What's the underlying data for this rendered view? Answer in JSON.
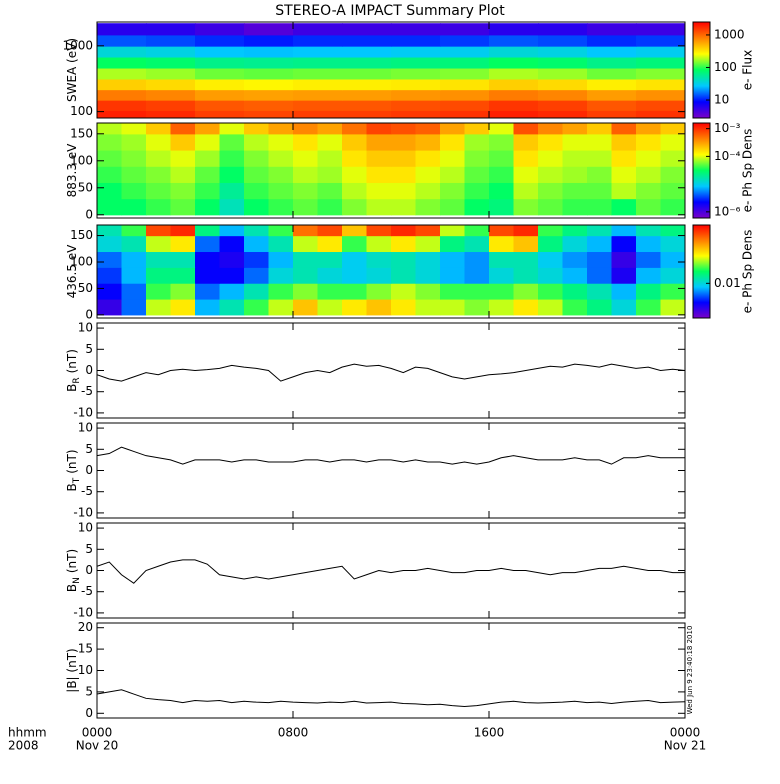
{
  "chart_data": {
    "title": "STEREO-A IMPACT Summary Plot",
    "xlim": [
      0,
      24
    ],
    "xticks": [
      {
        "value": 0,
        "label": "0000"
      },
      {
        "value": 8,
        "label": "0800"
      },
      {
        "value": 16,
        "label": "1600"
      },
      {
        "value": 24,
        "label": "0000"
      }
    ],
    "date_labels": [
      {
        "value": 0,
        "label": "Nov 20"
      },
      {
        "value": 24,
        "label": "Nov 21"
      }
    ],
    "xlabel_left": [
      "hhmm",
      "2008"
    ],
    "timestamp": "Wed Jun 9 23:40:18 2010",
    "colorscale": [
      "#7a00c8",
      "#0000ff",
      "#00c8ff",
      "#00ff60",
      "#ffff00",
      "#ff8000",
      "#ff0000"
    ],
    "x": [
      0,
      0.5,
      1,
      1.5,
      2,
      2.5,
      3,
      3.5,
      4,
      4.5,
      5,
      5.5,
      6,
      6.5,
      7,
      7.5,
      8,
      8.5,
      9,
      9.5,
      10,
      10.5,
      11,
      11.5,
      12,
      12.5,
      13,
      13.5,
      14,
      14.5,
      15,
      15.5,
      16,
      16.5,
      17,
      17.5,
      18,
      18.5,
      19,
      19.5,
      20,
      20.5,
      21,
      21.5,
      22,
      22.5,
      23,
      23.5,
      24
    ],
    "panels": [
      {
        "type": "heatmap",
        "ylabel": "SWEA (eV)",
        "ylog": true,
        "ylim": [
          80,
          2300
        ],
        "yticks": [
          100,
          1000
        ],
        "clabel": "e- Flux",
        "clog": true,
        "clim": [
          2.8,
          2500
        ],
        "cticks": [
          10,
          100,
          1000
        ],
        "x": [
          1,
          3,
          5,
          7,
          9,
          11,
          13,
          15,
          17,
          19,
          21,
          23
        ],
        "y": [
          88,
          125,
          180,
          260,
          380,
          560,
          820,
          1200,
          1800
        ],
        "values": [
          [
            1900,
            1760,
            1440,
            1360,
            1440,
            1440,
            1520,
            1600,
            1900,
            1760,
            1440,
            1600
          ],
          [
            1560,
            1430,
            1170,
            1100,
            1170,
            1170,
            1240,
            1300,
            1560,
            1430,
            1170,
            1300
          ],
          [
            840,
            770,
            630,
            600,
            630,
            630,
            670,
            700,
            840,
            770,
            630,
            700
          ],
          [
            400,
            360,
            300,
            280,
            300,
            300,
            310,
            330,
            400,
            360,
            300,
            330
          ],
          [
            180,
            165,
            135,
            128,
            135,
            135,
            143,
            150,
            180,
            165,
            135,
            150
          ],
          [
            84,
            77,
            63,
            60,
            63,
            63,
            67,
            70,
            84,
            77,
            63,
            70
          ],
          [
            36,
            33,
            27,
            26,
            27,
            27,
            29,
            30,
            36,
            33,
            27,
            30
          ],
          [
            14,
            13,
            11,
            10,
            11,
            11,
            11,
            12,
            14,
            13,
            11,
            12
          ],
          [
            6,
            6,
            5,
            4,
            5,
            5,
            5,
            5,
            6,
            6,
            5,
            5
          ]
        ]
      },
      {
        "type": "heatmap",
        "ylabel": "883.3 eV",
        "ylog": false,
        "ylim": [
          -6,
          170
        ],
        "yticks": [
          0,
          50,
          100,
          150
        ],
        "clabel": "e- Ph Sp Dens",
        "clog": true,
        "clim": [
          6e-07,
          0.0016
        ],
        "cticks": [
          {
            "value": 0.001,
            "label": "10⁻³"
          },
          {
            "value": 0.0001,
            "label": "10⁻⁴"
          },
          {
            "value": 1e-06,
            "label": "10⁻⁶"
          }
        ],
        "x": [
          0.5,
          1.5,
          2.5,
          3.5,
          4.5,
          5.5,
          6.5,
          7.5,
          8.5,
          9.5,
          10.5,
          11.5,
          12.5,
          13.5,
          14.5,
          15.5,
          16.5,
          17.5,
          18.5,
          19.5,
          20.5,
          21.5,
          22.5,
          23.5
        ],
        "y": [
          15,
          45,
          75,
          105,
          135,
          165
        ],
        "values": [
          [
            3e-05,
            3e-05,
            4e-05,
            5e-05,
            3e-05,
            1.5e-05,
            3e-05,
            4e-05,
            5e-05,
            4e-05,
            6e-05,
            8e-05,
            8e-05,
            6e-05,
            5e-05,
            3e-05,
            2.5e-05,
            6e-05,
            5e-05,
            4e-05,
            4e-05,
            3e-05,
            5e-05,
            4e-05
          ],
          [
            3e-05,
            4e-05,
            5e-05,
            6e-05,
            4e-05,
            2e-05,
            4e-05,
            5e-05,
            6e-05,
            5e-05,
            8e-05,
            0.0001,
            0.0001,
            8e-05,
            6e-05,
            4e-05,
            3e-05,
            8e-05,
            6e-05,
            5e-05,
            5e-05,
            8e-05,
            6e-05,
            5e-05
          ],
          [
            4e-05,
            5e-05,
            6e-05,
            8e-05,
            5e-05,
            3e-05,
            5e-05,
            6e-05,
            8e-05,
            7e-05,
            0.0001,
            0.00015,
            0.00015,
            0.0001,
            8e-05,
            5e-05,
            4e-05,
            0.0001,
            8e-05,
            7e-05,
            6e-05,
            0.0001,
            8e-05,
            6e-05
          ],
          [
            5e-05,
            6e-05,
            8e-05,
            0.0001,
            7e-05,
            4e-05,
            6e-05,
            8e-05,
            0.0001,
            8e-05,
            0.00015,
            0.0002,
            0.0002,
            0.00015,
            0.0001,
            6e-05,
            5e-05,
            0.00015,
            0.0001,
            8e-05,
            8e-05,
            0.00015,
            0.0001,
            8e-05
          ],
          [
            6e-05,
            7e-05,
            0.0001,
            0.0002,
            0.0001,
            5e-05,
            8e-05,
            0.0001,
            0.00015,
            0.0001,
            0.0002,
            0.0003,
            0.0003,
            0.00025,
            0.00015,
            7e-05,
            6e-05,
            0.0002,
            0.00015,
            0.0001,
            0.0001,
            0.0002,
            0.00015,
            0.0001
          ],
          [
            8e-05,
            0.0001,
            0.0002,
            0.0006,
            0.0003,
            0.0001,
            0.0002,
            0.0003,
            0.0004,
            0.0003,
            0.0005,
            0.0008,
            0.0007,
            0.0006,
            0.0003,
            0.0002,
            0.0001,
            0.0007,
            0.0004,
            0.0003,
            0.0002,
            0.0006,
            0.0003,
            0.0002
          ]
        ]
      },
      {
        "type": "heatmap",
        "ylabel": "436.5 eV",
        "ylog": false,
        "ylim": [
          -6,
          170
        ],
        "yticks": [
          0,
          50,
          100,
          150
        ],
        "clabel": "e- Ph Sp Dens",
        "clog": true,
        "clim": [
          0.002,
          0.15
        ],
        "cticks": [
          0.01
        ],
        "x": [
          0.5,
          1.5,
          2.5,
          3.5,
          4.5,
          5.5,
          6.5,
          7.5,
          8.5,
          9.5,
          10.5,
          11.5,
          12.5,
          13.5,
          14.5,
          15.5,
          16.5,
          17.5,
          18.5,
          19.5,
          20.5,
          21.5,
          22.5,
          23.5
        ],
        "y": [
          15,
          45,
          75,
          105,
          135,
          165
        ],
        "values": [
          [
            0.003,
            0.006,
            0.03,
            0.04,
            0.008,
            0.012,
            0.02,
            0.03,
            0.05,
            0.03,
            0.04,
            0.05,
            0.04,
            0.03,
            0.03,
            0.025,
            0.03,
            0.04,
            0.03,
            0.02,
            0.015,
            0.01,
            0.02,
            0.03
          ],
          [
            0.004,
            0.006,
            0.02,
            0.025,
            0.006,
            0.008,
            0.012,
            0.02,
            0.025,
            0.02,
            0.02,
            0.025,
            0.03,
            0.025,
            0.02,
            0.02,
            0.02,
            0.025,
            0.02,
            0.015,
            0.012,
            0.008,
            0.015,
            0.02
          ],
          [
            0.005,
            0.008,
            0.015,
            0.015,
            0.004,
            0.004,
            0.006,
            0.01,
            0.012,
            0.01,
            0.009,
            0.01,
            0.012,
            0.01,
            0.008,
            0.007,
            0.01,
            0.012,
            0.01,
            0.008,
            0.006,
            0.0035,
            0.008,
            0.01
          ],
          [
            0.006,
            0.008,
            0.012,
            0.012,
            0.004,
            0.0035,
            0.005,
            0.008,
            0.012,
            0.012,
            0.009,
            0.011,
            0.012,
            0.01,
            0.008,
            0.007,
            0.012,
            0.012,
            0.009,
            0.007,
            0.006,
            0.003,
            0.006,
            0.008
          ],
          [
            0.01,
            0.012,
            0.03,
            0.04,
            0.006,
            0.004,
            0.008,
            0.012,
            0.03,
            0.04,
            0.02,
            0.03,
            0.04,
            0.03,
            0.015,
            0.012,
            0.04,
            0.05,
            0.015,
            0.01,
            0.008,
            0.004,
            0.008,
            0.01
          ],
          [
            0.012,
            0.02,
            0.1,
            0.12,
            0.015,
            0.008,
            0.012,
            0.02,
            0.08,
            0.1,
            0.05,
            0.1,
            0.12,
            0.1,
            0.03,
            0.02,
            0.1,
            0.12,
            0.02,
            0.015,
            0.012,
            0.008,
            0.012,
            0.015
          ]
        ]
      },
      {
        "type": "line",
        "ylabel": "B",
        "ylabel_sub": "R",
        "ylabel_unit": "(nT)",
        "color": "#000000",
        "ylim": [
          -11.2,
          11.2
        ],
        "yticks": [
          -10,
          -5,
          0,
          5,
          10
        ],
        "values": [
          -1,
          -2,
          -2.5,
          -1.5,
          -0.5,
          -1,
          0,
          0.3,
          0,
          0.2,
          0.5,
          1.2,
          0.8,
          0.5,
          0,
          -2.5,
          -1.5,
          -0.5,
          0,
          -0.5,
          0.8,
          1.5,
          1,
          1.2,
          0.5,
          -0.5,
          0.8,
          0.5,
          -0.5,
          -1.5,
          -2,
          -1.5,
          -1,
          -0.8,
          -0.5,
          0,
          0.5,
          1,
          0.8,
          1.5,
          1.2,
          0.8,
          1.5,
          1,
          0.5,
          0.8,
          0,
          0.3,
          0
        ]
      },
      {
        "type": "line",
        "ylabel": "B",
        "ylabel_sub": "T",
        "ylabel_unit": "(nT)",
        "color": "#000000",
        "ylim": [
          -11.2,
          11.2
        ],
        "yticks": [
          -10,
          -5,
          0,
          5,
          10
        ],
        "values": [
          3.5,
          4,
          5.5,
          4.5,
          3.5,
          3,
          2.5,
          1.5,
          2.5,
          2.5,
          2.5,
          2,
          2.5,
          2.5,
          2,
          2,
          2,
          2.5,
          2.5,
          2,
          2.5,
          2.5,
          2,
          2.5,
          2.5,
          2,
          2.5,
          2,
          2,
          1.5,
          2,
          1.5,
          2,
          3,
          3.5,
          3,
          2.5,
          2.5,
          2.5,
          3,
          2.5,
          2.5,
          1.5,
          3,
          3,
          3.5,
          3,
          3,
          3
        ]
      },
      {
        "type": "line",
        "ylabel": "B",
        "ylabel_sub": "N",
        "ylabel_unit": "(nT)",
        "color": "#000000",
        "ylim": [
          -11.2,
          11.2
        ],
        "yticks": [
          -10,
          -5,
          0,
          5,
          10
        ],
        "values": [
          1,
          2,
          -1,
          -3,
          0,
          1,
          2,
          2.5,
          2.5,
          1.5,
          -1,
          -1.5,
          -2,
          -1.5,
          -2,
          -1.5,
          -1,
          -0.5,
          0,
          0.5,
          1,
          -2,
          -1,
          0,
          -0.5,
          0,
          0,
          0.5,
          0,
          -0.5,
          -0.5,
          0,
          0,
          0.5,
          0,
          0,
          -0.5,
          -1,
          -0.5,
          -0.5,
          0,
          0.5,
          0.5,
          1,
          0.5,
          0,
          0,
          -0.5,
          -0.5
        ]
      },
      {
        "type": "line",
        "ylabel": "|B| (nT)",
        "color": "#000000",
        "ylim": [
          -1.1,
          21.1
        ],
        "yticks": [
          0,
          5,
          10,
          15,
          20
        ],
        "values": [
          4.5,
          5,
          5.5,
          4.5,
          3.5,
          3.2,
          3,
          2.5,
          3,
          2.8,
          3,
          2.5,
          2.8,
          2.6,
          2.5,
          2.8,
          2.6,
          2.5,
          2.4,
          2.6,
          2.5,
          2.8,
          2.4,
          2.5,
          2.6,
          2.3,
          2.2,
          2,
          2.1,
          1.8,
          1.6,
          1.8,
          2.2,
          2.6,
          2.8,
          2.5,
          2.4,
          2.5,
          2.6,
          2.8,
          2.5,
          2.6,
          2.3,
          2.6,
          2.8,
          3,
          2.5,
          2.6,
          2.7
        ]
      }
    ]
  }
}
